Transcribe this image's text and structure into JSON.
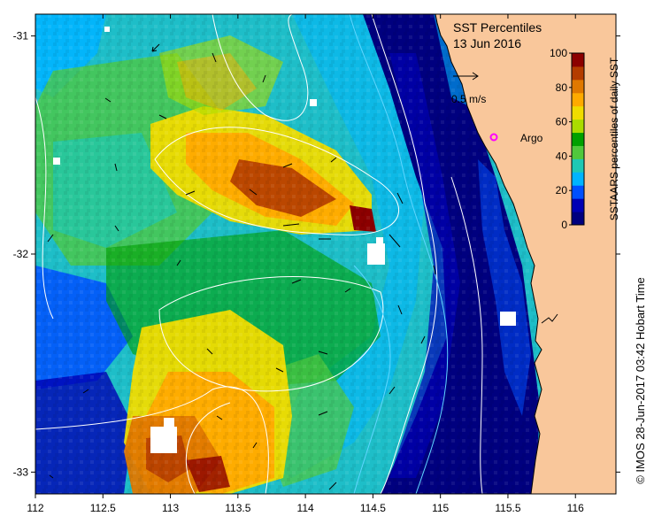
{
  "title": "SST Percentiles",
  "date": "13 Jun 2016",
  "scale_label": "0.5 m/s",
  "argo_label": "Argo",
  "credit": "© IMOS 28-Jun-2017 03:42 Hobart Time",
  "colorbar": {
    "label": "SSTAARS percentiles of daily SST",
    "ticks": [
      "0",
      "20",
      "40",
      "60",
      "80",
      "100"
    ],
    "colors": [
      "#00007f",
      "#0000b4",
      "#0050ff",
      "#00b4ff",
      "#1ec8b4",
      "#50c83c",
      "#00a000",
      "#aadc00",
      "#f0dc00",
      "#ffaa00",
      "#e07800",
      "#b43c00",
      "#8c0000"
    ]
  },
  "axes": {
    "x_ticks": [
      "112",
      "112.5",
      "113",
      "113.5",
      "114",
      "114.5",
      "115",
      "115.5",
      "116"
    ],
    "y_ticks": [
      "-31",
      "-32",
      "-33"
    ],
    "lon_range": [
      112,
      116.3
    ],
    "lat_range": [
      -30.9,
      -33.1
    ]
  },
  "land_color": "#f9c79b"
}
